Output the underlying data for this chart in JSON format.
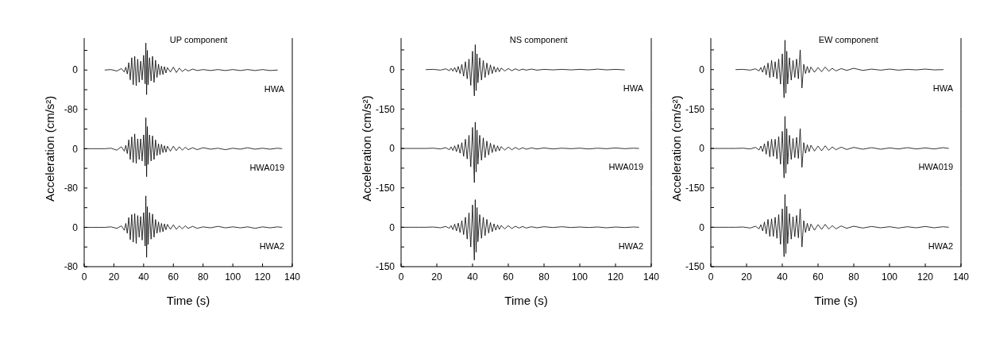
{
  "chart_data": [
    {
      "type": "line",
      "title": "UP component",
      "xlim": [
        0,
        140
      ],
      "ylim": [
        -80,
        65
      ],
      "yticks": [
        {
          "value": 40,
          "label": null
        },
        0,
        {
          "value": -40,
          "label": null
        },
        -80
      ],
      "tick_labels": "y",
      "annotations": [
        "HWA"
      ],
      "series": [
        {
          "color": "#000000",
          "x": [
            14,
            18,
            22,
            25,
            27,
            28,
            29,
            30,
            31,
            32,
            33,
            34,
            35,
            36,
            37,
            38,
            39,
            40,
            41,
            41.5,
            42,
            42.5,
            43,
            44,
            45,
            46,
            47,
            48,
            49,
            50,
            51,
            52,
            53,
            54,
            55,
            56,
            58,
            60,
            62,
            64,
            66,
            68,
            70,
            73,
            76,
            80,
            85,
            90,
            95,
            100,
            105,
            110,
            115,
            120,
            125,
            130
          ],
          "values": [
            0,
            1,
            -2,
            3,
            -4,
            6,
            -8,
            15,
            -20,
            25,
            -30,
            28,
            -32,
            22,
            -25,
            18,
            -20,
            30,
            -28,
            55,
            -50,
            40,
            -30,
            25,
            -22,
            28,
            -25,
            20,
            -15,
            12,
            -10,
            8,
            -9,
            7,
            -6,
            5,
            -4,
            6,
            -5,
            4,
            -3,
            2,
            -2,
            2,
            -1,
            1,
            -1,
            1,
            -1,
            1,
            -1,
            1,
            -1,
            1,
            -1,
            0
          ]
        }
      ]
    },
    {
      "type": "line",
      "x": [
        0,
        5,
        10,
        14,
        18,
        22,
        25,
        27,
        28,
        29,
        30,
        31,
        32,
        33,
        34,
        35,
        36,
        37,
        38,
        39,
        40,
        41,
        41.5,
        42,
        42.5,
        43,
        44,
        45,
        46,
        47,
        48,
        49,
        50,
        51,
        52,
        53,
        54,
        55,
        56,
        58,
        60,
        62,
        64,
        66,
        68,
        70,
        73,
        76,
        80,
        85,
        90,
        95,
        100,
        105,
        110,
        115,
        120,
        125,
        130,
        133
      ],
      "xlim": [
        0,
        140
      ],
      "ylim": [
        -80,
        80
      ],
      "yticks": [
        {
          "value": 40,
          "label": null
        },
        0,
        {
          "value": -40,
          "label": null
        },
        -80
      ],
      "tick_labels": "y",
      "ylabel": "Acceleration (cm/s²)",
      "annotations": [
        "HWA019"
      ],
      "series": [
        {
          "color": "#000000",
          "values": [
            0,
            0,
            0,
            0,
            1,
            -3,
            4,
            -5,
            7,
            -10,
            18,
            -22,
            24,
            -28,
            30,
            -30,
            20,
            -22,
            20,
            -25,
            28,
            -35,
            63,
            -57,
            45,
            -32,
            28,
            -25,
            26,
            -22,
            18,
            -14,
            10,
            -12,
            9,
            -8,
            6,
            -7,
            5,
            -5,
            5,
            -4,
            4,
            -3,
            3,
            -2,
            2,
            -2,
            2,
            -1,
            1,
            -2,
            1,
            -1,
            2,
            -1,
            1,
            -1,
            1,
            0
          ]
        }
      ]
    },
    {
      "type": "line",
      "x": [
        0,
        5,
        10,
        14,
        18,
        22,
        25,
        27,
        28,
        29,
        30,
        31,
        32,
        33,
        34,
        35,
        36,
        37,
        38,
        39,
        40,
        41,
        41.5,
        42,
        42.5,
        43,
        44,
        45,
        46,
        47,
        48,
        49,
        50,
        51,
        52,
        53,
        54,
        55,
        56,
        58,
        60,
        62,
        64,
        66,
        68,
        70,
        73,
        76,
        80,
        85,
        90,
        95,
        100,
        105,
        110,
        115,
        120,
        125,
        130,
        133
      ],
      "xlim": [
        0,
        140
      ],
      "xticks": [
        0,
        20,
        40,
        60,
        80,
        100,
        120,
        140
      ],
      "ylim": [
        -80,
        80
      ],
      "yticks": [
        {
          "value": 40,
          "label": null
        },
        0,
        {
          "value": -40,
          "label": null
        },
        -80
      ],
      "xlabel": "Time (s)",
      "annotations": [
        "HWA2"
      ],
      "series": [
        {
          "color": "#000000",
          "values": [
            0,
            0,
            0,
            0,
            1,
            -2,
            3,
            -6,
            8,
            -12,
            20,
            -25,
            26,
            -30,
            28,
            -33,
            24,
            -20,
            22,
            -26,
            30,
            -38,
            64,
            -61,
            42,
            -35,
            30,
            -24,
            27,
            -20,
            16,
            -12,
            11,
            -10,
            8,
            -9,
            7,
            -5,
            6,
            -4,
            5,
            -4,
            3,
            -3,
            3,
            -2,
            2,
            -2,
            1,
            -1,
            2,
            -1,
            1,
            -1,
            1,
            -2,
            1,
            -1,
            1,
            0
          ]
        }
      ]
    },
    {
      "type": "line",
      "title": "NS component",
      "xlim": [
        0,
        140
      ],
      "ylim": [
        -150,
        120
      ],
      "yticks": [
        {
          "value": 75,
          "label": null
        },
        0,
        {
          "value": -75,
          "label": null
        },
        -150
      ],
      "tick_labels": "y",
      "annotations": [
        "HWA"
      ],
      "series": [
        {
          "color": "#000000",
          "x": [
            14,
            18,
            22,
            25,
            27,
            28,
            29,
            30,
            31,
            32,
            33,
            34,
            35,
            36,
            37,
            38,
            39,
            40,
            41,
            41.5,
            42,
            42.5,
            43,
            44,
            45,
            46,
            47,
            48,
            49,
            50,
            51,
            52,
            53,
            54,
            55,
            56,
            58,
            60,
            62,
            64,
            66,
            68,
            70,
            73,
            76,
            80,
            85,
            90,
            95,
            100,
            105,
            110,
            115,
            120,
            125
          ],
          "values": [
            0,
            1,
            -2,
            3,
            -4,
            5,
            -6,
            8,
            -10,
            12,
            -15,
            20,
            -25,
            30,
            -35,
            40,
            -60,
            70,
            -100,
            95,
            -80,
            60,
            -50,
            45,
            -40,
            35,
            -30,
            25,
            -20,
            18,
            -15,
            12,
            -10,
            8,
            -8,
            6,
            -5,
            4,
            -4,
            3,
            -3,
            2,
            -2,
            2,
            -2,
            1,
            -1,
            1,
            -1,
            1,
            -1,
            2,
            -1,
            1,
            -1
          ]
        }
      ]
    },
    {
      "type": "line",
      "x": [
        0,
        5,
        10,
        14,
        18,
        22,
        25,
        27,
        28,
        29,
        30,
        31,
        32,
        33,
        34,
        35,
        36,
        37,
        38,
        39,
        40,
        41,
        41.5,
        42,
        42.5,
        43,
        44,
        45,
        46,
        47,
        48,
        49,
        50,
        51,
        52,
        53,
        54,
        55,
        56,
        58,
        60,
        62,
        64,
        66,
        68,
        70,
        73,
        76,
        80,
        85,
        90,
        95,
        100,
        105,
        110,
        115,
        120,
        125,
        130,
        133
      ],
      "xlim": [
        0,
        140
      ],
      "ylim": [
        -150,
        150
      ],
      "yticks": [
        {
          "value": 75,
          "label": null
        },
        0,
        {
          "value": -75,
          "label": null
        },
        -150
      ],
      "tick_labels": "y",
      "ylabel": "Acceleration (cm/s²)",
      "annotations": [
        "HWA019"
      ],
      "series": [
        {
          "color": "#000000",
          "values": [
            0,
            0,
            0,
            0,
            1,
            -2,
            3,
            -5,
            6,
            -8,
            10,
            -12,
            15,
            -18,
            22,
            -30,
            35,
            -40,
            50,
            -70,
            80,
            -130,
            100,
            -90,
            70,
            -60,
            50,
            -45,
            40,
            -35,
            28,
            -25,
            20,
            -16,
            14,
            -12,
            10,
            -9,
            7,
            -6,
            5,
            -5,
            4,
            -4,
            3,
            -3,
            2,
            -2,
            2,
            -2,
            1,
            -1,
            1,
            -2,
            1,
            -1,
            2,
            -1,
            1,
            0
          ]
        }
      ]
    },
    {
      "type": "line",
      "x": [
        0,
        5,
        10,
        14,
        18,
        22,
        25,
        27,
        28,
        29,
        30,
        31,
        32,
        33,
        34,
        35,
        36,
        37,
        38,
        39,
        40,
        41,
        41.5,
        42,
        42.5,
        43,
        44,
        45,
        46,
        47,
        48,
        49,
        50,
        51,
        52,
        53,
        54,
        55,
        56,
        58,
        60,
        62,
        64,
        66,
        68,
        70,
        73,
        76,
        80,
        85,
        90,
        95,
        100,
        105,
        110,
        115,
        120,
        125,
        130,
        133
      ],
      "xlim": [
        0,
        140
      ],
      "xticks": [
        0,
        20,
        40,
        60,
        80,
        100,
        120,
        140
      ],
      "ylim": [
        -150,
        150
      ],
      "yticks": [
        {
          "value": 75,
          "label": null
        },
        0,
        {
          "value": -75,
          "label": null
        },
        -150
      ],
      "xlabel": "Time (s)",
      "annotations": [
        "HWA2"
      ],
      "series": [
        {
          "color": "#000000",
          "values": [
            0,
            0,
            0,
            0,
            1,
            -2,
            3,
            -4,
            6,
            -9,
            12,
            -14,
            16,
            -20,
            25,
            -28,
            38,
            -45,
            55,
            -75,
            85,
            -125,
            105,
            -95,
            75,
            -55,
            48,
            -42,
            38,
            -32,
            30,
            -22,
            18,
            -17,
            13,
            -11,
            9,
            -8,
            7,
            -6,
            6,
            -5,
            4,
            -3,
            3,
            -3,
            2,
            -2,
            2,
            -1,
            2,
            -1,
            1,
            -1,
            1,
            -2,
            1,
            -1,
            1,
            0
          ]
        }
      ]
    },
    {
      "type": "line",
      "title": "EW component",
      "xlim": [
        0,
        140
      ],
      "ylim": [
        -150,
        120
      ],
      "yticks": [
        {
          "value": 75,
          "label": null
        },
        0,
        {
          "value": -75,
          "label": null
        },
        -150
      ],
      "tick_labels": "y",
      "annotations": [
        "HWA"
      ],
      "series": [
        {
          "color": "#000000",
          "x": [
            14,
            18,
            22,
            25,
            27,
            28,
            29,
            30,
            31,
            32,
            33,
            34,
            35,
            36,
            37,
            38,
            39,
            40,
            41,
            41.5,
            42,
            42.5,
            43,
            44,
            45,
            46,
            47,
            48,
            49,
            50,
            51,
            52,
            53,
            54,
            55,
            56,
            58,
            60,
            62,
            64,
            66,
            68,
            70,
            73,
            76,
            80,
            85,
            90,
            95,
            100,
            105,
            110,
            115,
            120,
            125,
            130
          ],
          "values": [
            0,
            1,
            -2,
            3,
            -5,
            8,
            -10,
            15,
            -20,
            25,
            -30,
            35,
            -28,
            30,
            -35,
            40,
            -55,
            60,
            -107,
            112,
            -90,
            70,
            -55,
            45,
            -40,
            35,
            -30,
            40,
            -35,
            75,
            -70,
            20,
            -15,
            12,
            -12,
            10,
            -10,
            8,
            -8,
            10,
            -6,
            5,
            -5,
            4,
            -3,
            5,
            -3,
            2,
            -2,
            2,
            -2,
            1,
            -1,
            2,
            -1,
            0
          ]
        }
      ]
    },
    {
      "type": "line",
      "x": [
        0,
        5,
        10,
        14,
        18,
        22,
        25,
        27,
        28,
        29,
        30,
        31,
        32,
        33,
        34,
        35,
        36,
        37,
        38,
        39,
        40,
        41,
        41.5,
        42,
        42.5,
        43,
        44,
        45,
        46,
        47,
        48,
        49,
        50,
        51,
        52,
        53,
        54,
        55,
        56,
        58,
        60,
        62,
        64,
        66,
        68,
        70,
        73,
        76,
        80,
        85,
        90,
        95,
        100,
        105,
        110,
        115,
        120,
        125,
        130,
        133
      ],
      "xlim": [
        0,
        140
      ],
      "ylim": [
        -150,
        150
      ],
      "yticks": [
        {
          "value": 75,
          "label": null
        },
        0,
        {
          "value": -75,
          "label": null
        },
        -150
      ],
      "tick_labels": "y",
      "ylabel": "Acceleration (cm/s²)",
      "annotations": [
        "HWA019"
      ],
      "series": [
        {
          "color": "#000000",
          "values": [
            0,
            0,
            0,
            0,
            1,
            -2,
            4,
            -6,
            9,
            -12,
            18,
            -22,
            28,
            -32,
            35,
            -30,
            35,
            -40,
            45,
            -60,
            65,
            -112,
            122,
            -95,
            75,
            -60,
            50,
            -42,
            38,
            -35,
            42,
            -38,
            75,
            -72,
            22,
            -18,
            14,
            -12,
            12,
            -10,
            9,
            -9,
            10,
            -7,
            6,
            -5,
            5,
            -4,
            4,
            -3,
            3,
            -3,
            2,
            -2,
            3,
            -2,
            2,
            -2,
            3,
            0
          ]
        }
      ]
    },
    {
      "type": "line",
      "x": [
        0,
        5,
        10,
        14,
        18,
        22,
        25,
        27,
        28,
        29,
        30,
        31,
        32,
        33,
        34,
        35,
        36,
        37,
        38,
        39,
        40,
        41,
        41.5,
        42,
        42.5,
        43,
        44,
        45,
        46,
        47,
        48,
        49,
        50,
        51,
        52,
        53,
        54,
        55,
        56,
        58,
        60,
        62,
        64,
        66,
        68,
        70,
        73,
        76,
        80,
        85,
        90,
        95,
        100,
        105,
        110,
        115,
        120,
        125,
        130,
        133
      ],
      "xlim": [
        0,
        140
      ],
      "xticks": [
        0,
        20,
        40,
        60,
        80,
        100,
        120,
        140
      ],
      "ylim": [
        -150,
        150
      ],
      "yticks": [
        {
          "value": 75,
          "label": null
        },
        0,
        {
          "value": -75,
          "label": null
        },
        -150
      ],
      "xlabel": "Time (s)",
      "annotations": [
        "HWA2"
      ],
      "series": [
        {
          "color": "#000000",
          "values": [
            0,
            0,
            0,
            0,
            1,
            -3,
            4,
            -6,
            10,
            -14,
            20,
            -25,
            30,
            -35,
            32,
            -35,
            38,
            -42,
            48,
            -65,
            70,
            -112,
            125,
            -100,
            80,
            -62,
            52,
            -45,
            40,
            -36,
            45,
            -40,
            70,
            -75,
            25,
            -20,
            15,
            -14,
            12,
            -11,
            10,
            -8,
            11,
            -7,
            6,
            -6,
            5,
            -4,
            4,
            -3,
            3,
            -2,
            2,
            -3,
            2,
            -2,
            3,
            -2,
            2,
            0
          ]
        }
      ]
    }
  ]
}
